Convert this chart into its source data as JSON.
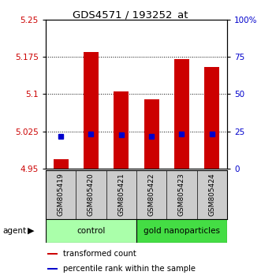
{
  "title": "GDS4571 / 193252_at",
  "samples": [
    "GSM805419",
    "GSM805420",
    "GSM805421",
    "GSM805422",
    "GSM805423",
    "GSM805424"
  ],
  "red_values": [
    4.97,
    5.185,
    5.105,
    5.09,
    5.17,
    5.155
  ],
  "blue_values": [
    5.015,
    5.02,
    5.018,
    5.016,
    5.02,
    5.02
  ],
  "y_min": 4.95,
  "y_max": 5.25,
  "y_ticks_left": [
    4.95,
    5.025,
    5.1,
    5.175,
    5.25
  ],
  "y_ticks_right": [
    0,
    25,
    50,
    75,
    100
  ],
  "grid_lines": [
    5.025,
    5.1,
    5.175
  ],
  "groups": [
    {
      "label": "control",
      "indices": [
        0,
        1,
        2
      ],
      "color": "#aaffaa"
    },
    {
      "label": "gold nanoparticles",
      "indices": [
        3,
        4,
        5
      ],
      "color": "#44dd44"
    }
  ],
  "bar_color": "#cc0000",
  "blue_color": "#0000cc",
  "bar_width": 0.5,
  "tick_label_color_left": "#cc0000",
  "tick_label_color_right": "#0000cc",
  "sample_bg_color": "#cccccc",
  "legend_labels": [
    "transformed count",
    "percentile rank within the sample"
  ]
}
